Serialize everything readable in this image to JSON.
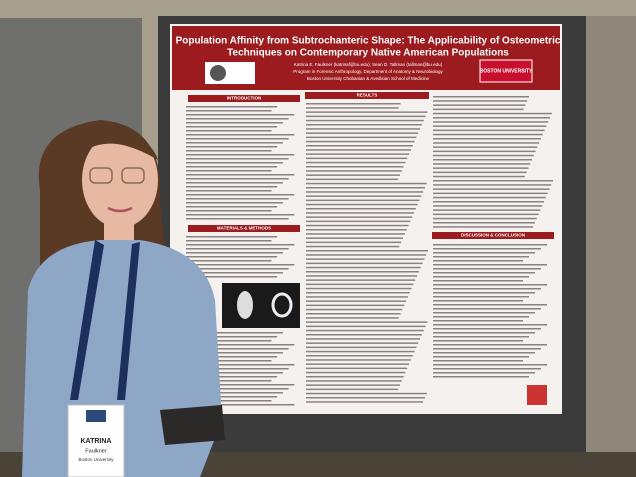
{
  "poster": {
    "title_lines": [
      "Population Affinity from Subtrochanteric Shape: The Applicability of Osteometric",
      "Techniques on Contemporary Native American Populations"
    ],
    "authors": "Katrina E. Faulkner (katrinaf@bu.edu); Sean D. Tallman (tallman@bu.edu)",
    "affiliation_lines": [
      "Program in Forensic Anthropology, Department of Anatomy & Neurobiology",
      "Boston University Chobanian & Avedisian School of Medicine"
    ],
    "logo": "BOSTON UNIVERSITY",
    "sections": [
      "INTRODUCTION",
      "MATERIALS & METHODS",
      "RESULTS",
      "DISCUSSION & CONCLUSION"
    ]
  },
  "badge": {
    "first_name": "KATRINA",
    "last_name": "Faulkner",
    "affiliation": "Boston University"
  }
}
